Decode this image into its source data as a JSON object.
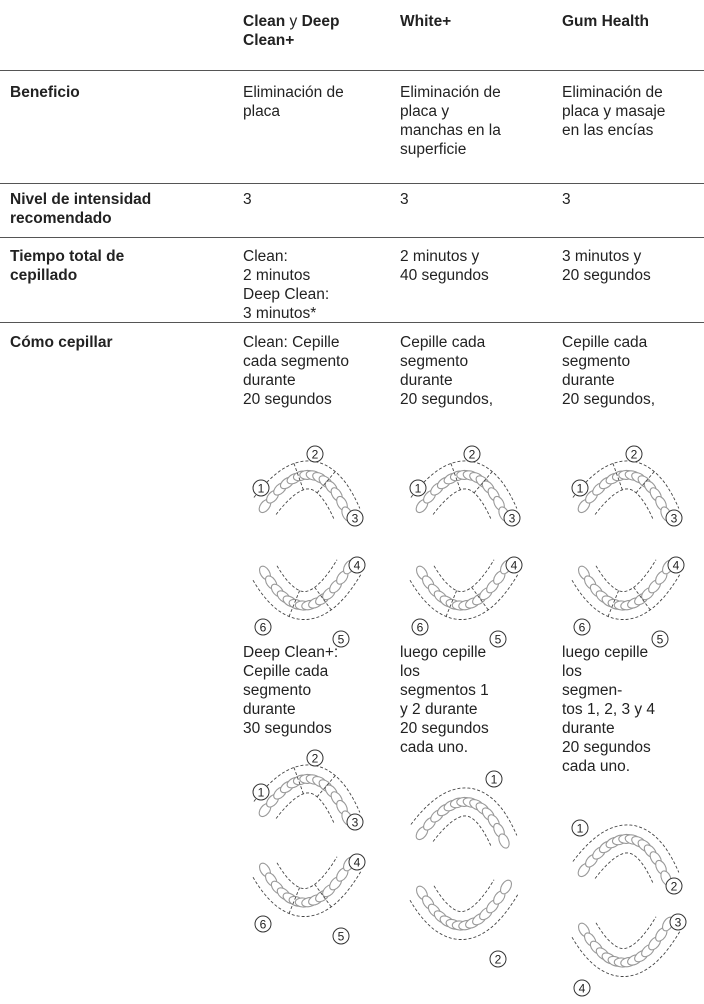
{
  "header": {
    "col1": {
      "name_a": "Clean",
      "joiner": "y",
      "name_b": "Deep Clean+"
    },
    "col2": "White+",
    "col3": "Gum Health"
  },
  "rows": [
    {
      "label": [
        "Beneficio"
      ],
      "cells": [
        [
          "Eliminación de",
          "placa"
        ],
        [
          "Eliminación de",
          "placa y",
          "manchas en la",
          "superficie"
        ],
        [
          "Eliminación de",
          "placa y masaje",
          "en las encías"
        ]
      ]
    },
    {
      "label": [
        "Nivel de intensidad",
        "recomendado"
      ],
      "cells": [
        [
          "3"
        ],
        [
          "3"
        ],
        [
          "3"
        ]
      ]
    },
    {
      "label": [
        "Tiempo total de",
        "cepillado"
      ],
      "cells": [
        [
          "Clean:",
          "2 minutos",
          "Deep Clean:",
          "3 minutos*"
        ],
        [
          "2 minutos y",
          "40 segundos"
        ],
        [
          "3 minutos y",
          "20 segundos"
        ]
      ]
    },
    {
      "label": [
        "Cómo cepillar"
      ],
      "cells": [
        {
          "text_before": [
            "Clean: Cepille",
            "cada segmento",
            "durante",
            "20 segundos"
          ],
          "diagram_before": {
            "upper": [
              "1",
              "2",
              "3"
            ],
            "lower": [
              "4",
              "5",
              "6"
            ]
          },
          "text_after": [
            "Deep Clean+:",
            "Cepille cada",
            "segmento",
            "durante",
            "30 segundos"
          ],
          "diagram_after": {
            "upper": [
              "1",
              "2",
              "3"
            ],
            "lower": [
              "4",
              "5",
              "6"
            ]
          }
        },
        {
          "text_before": [
            "Cepille cada",
            "segmento",
            "durante",
            "20 segundos,"
          ],
          "diagram_before": {
            "upper": [
              "1",
              "2",
              "3"
            ],
            "lower": [
              "4",
              "5",
              "6"
            ]
          },
          "text_after": [
            "luego cepille",
            "los",
            "segmentos 1",
            "y 2 durante",
            "20 segundos",
            "cada uno."
          ],
          "diagram_after": {
            "upper": [
              "1"
            ],
            "lower": [
              "2"
            ]
          }
        },
        {
          "text_before": [
            "Cepille cada",
            "segmento",
            "durante",
            "20 segundos,"
          ],
          "diagram_before": {
            "upper": [
              "1",
              "2",
              "3"
            ],
            "lower": [
              "4",
              "5",
              "6"
            ]
          },
          "text_after": [
            "luego cepille",
            "los",
            "segmen-",
            "tos 1, 2, 3 y 4",
            "durante",
            "20 segundos",
            "cada uno."
          ],
          "diagram_after": {
            "upper": [
              "1",
              "2"
            ],
            "lower": [
              "3",
              "4"
            ]
          }
        }
      ]
    }
  ]
}
